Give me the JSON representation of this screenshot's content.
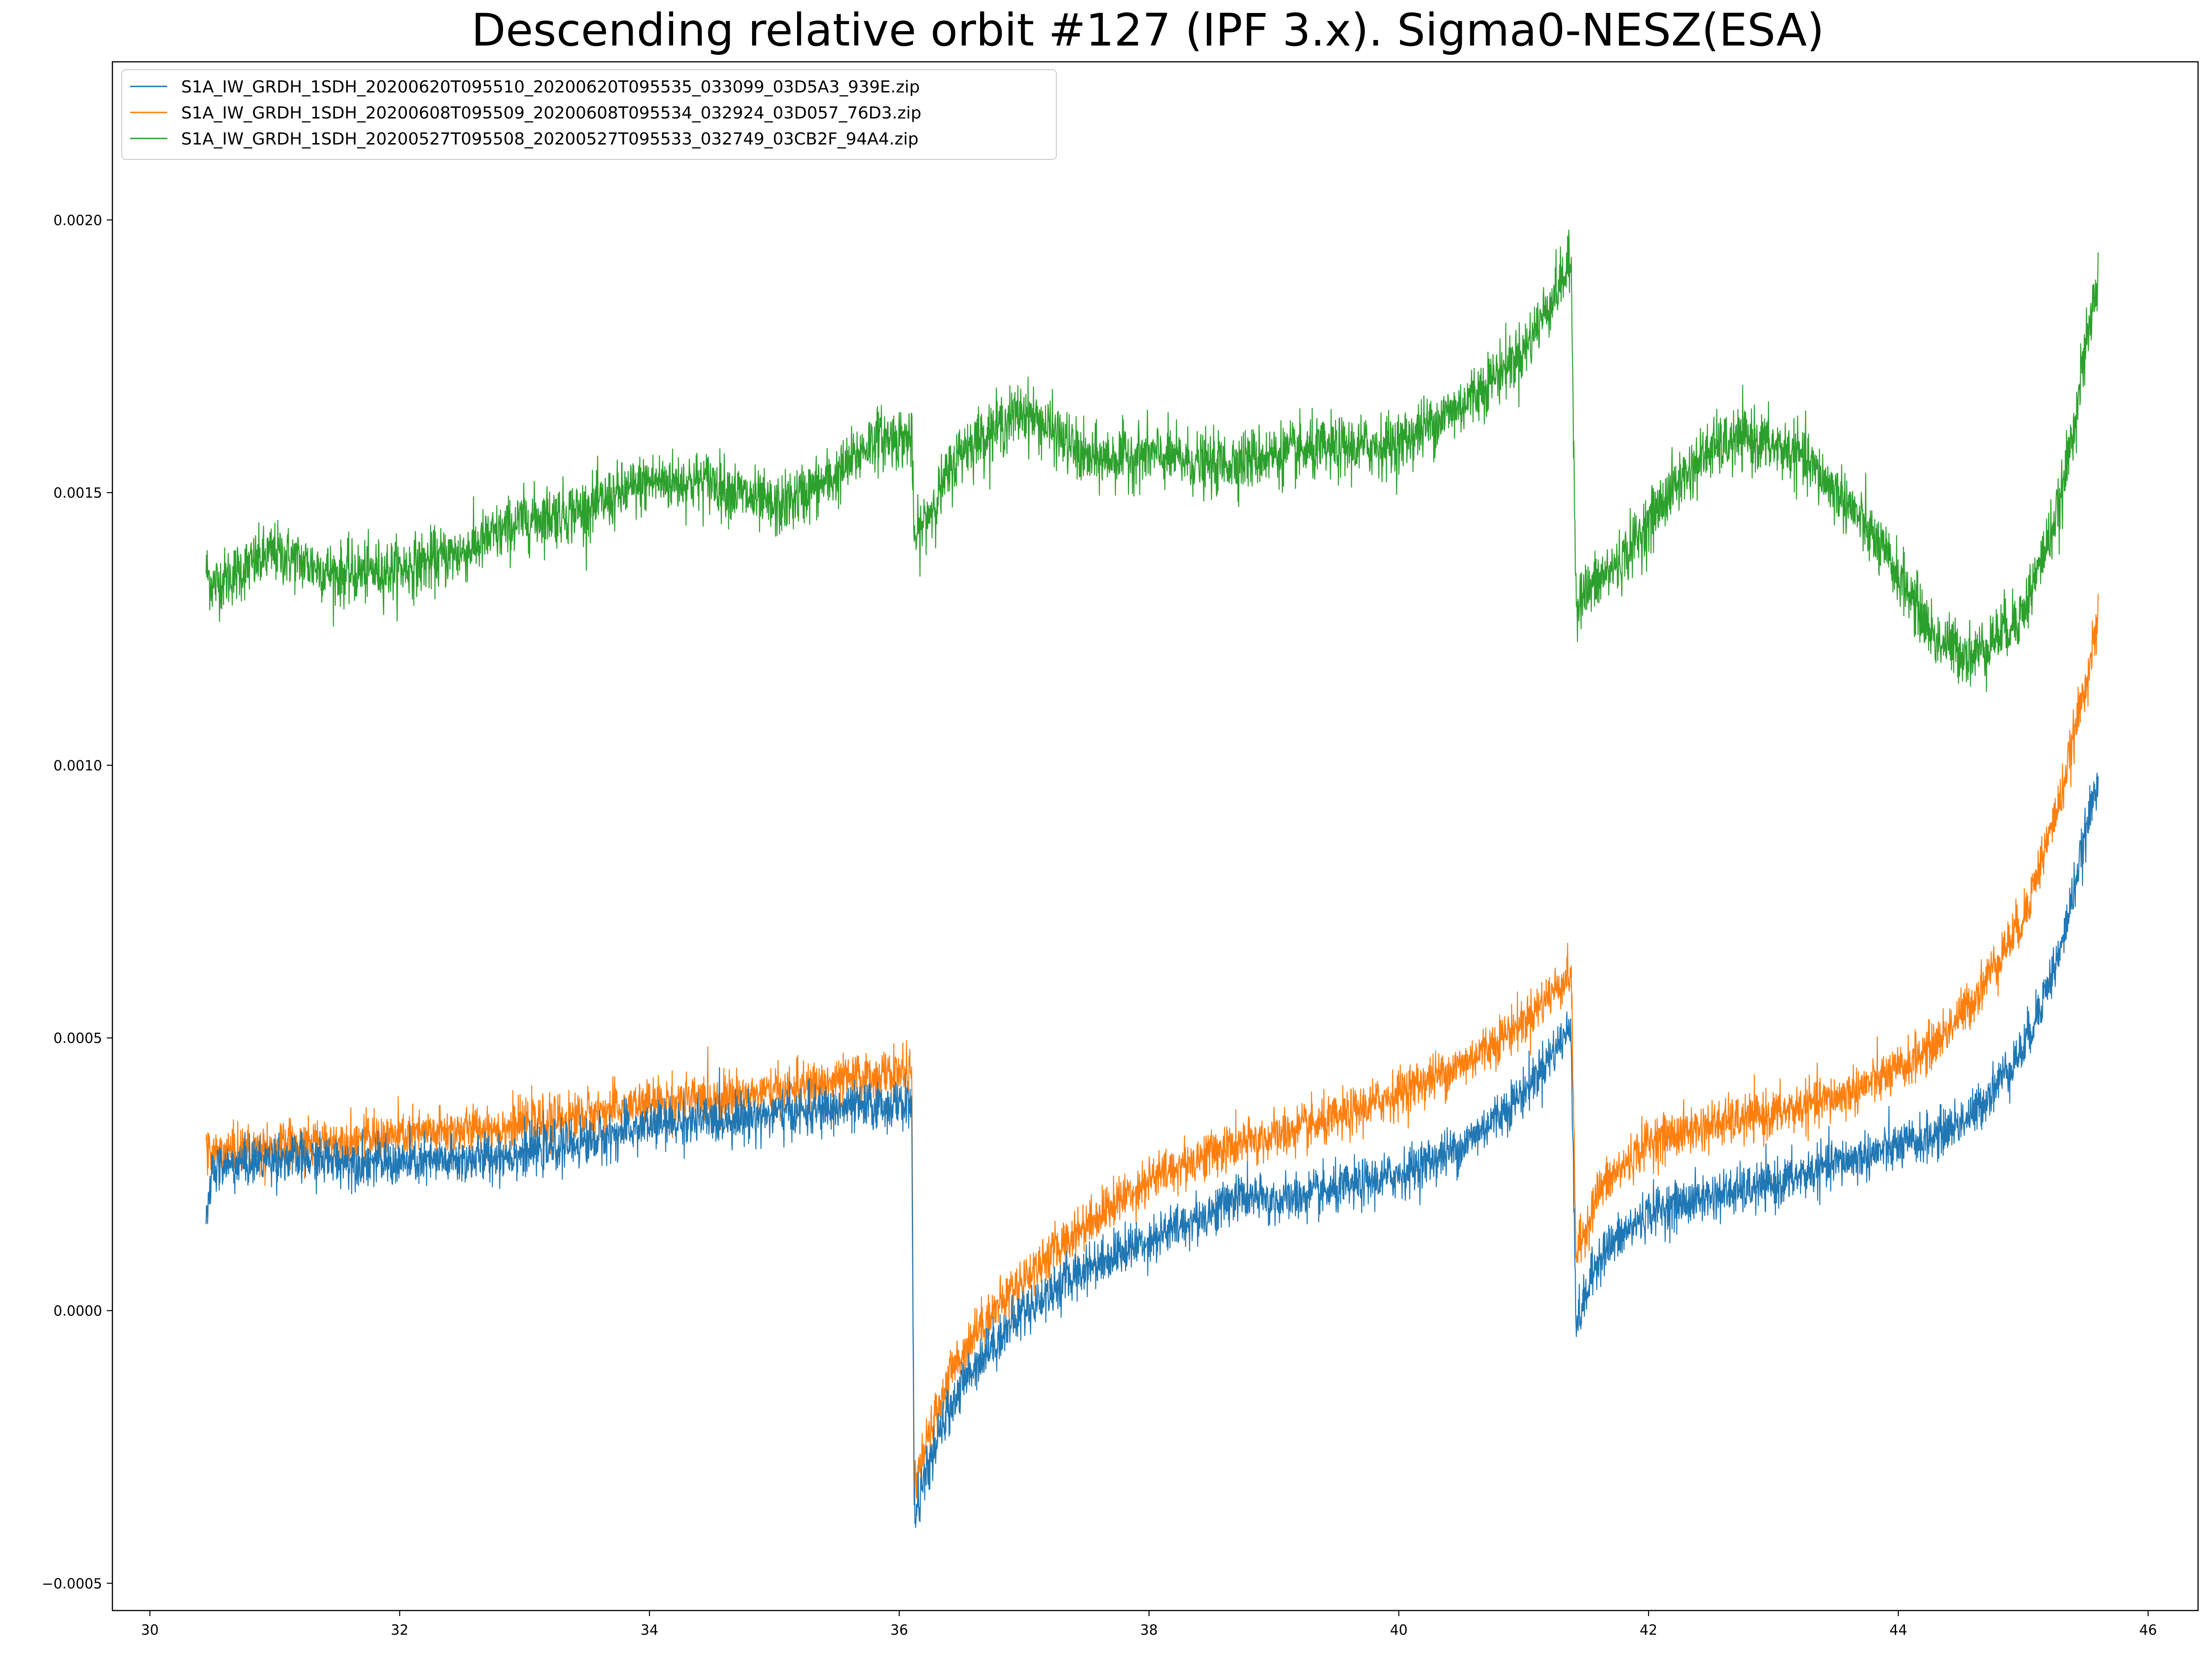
{
  "chart_data": {
    "type": "line",
    "title": "Descending relative orbit #127 (IPF 3.x). Sigma0-NESZ(ESA)",
    "xlabel": "",
    "ylabel": "",
    "xlim": [
      29.7,
      46.4
    ],
    "ylim": [
      -0.00055,
      0.00229
    ],
    "x_ticks": [
      30,
      32,
      34,
      36,
      38,
      40,
      42,
      44,
      46
    ],
    "x_tick_labels": [
      "30",
      "32",
      "34",
      "36",
      "38",
      "40",
      "42",
      "44",
      "46"
    ],
    "y_ticks": [
      -0.0005,
      0.0,
      0.0005,
      0.001,
      0.0015,
      0.002
    ],
    "y_tick_labels": [
      "−0.0005",
      "0.0000",
      "0.0005",
      "0.0010",
      "0.0015",
      "0.0020"
    ],
    "grid": false,
    "legend_position": "top-left",
    "series": [
      {
        "name": "S1A_IW_GRDH_1SDH_20200620T095510_20200620T095535_033099_03D5A3_939E.zip",
        "color": "#1f77b4",
        "noise": 2.2e-05,
        "points": [
          [
            30.45,
            0.00016
          ],
          [
            30.5,
            0.00026
          ],
          [
            31.0,
            0.00028
          ],
          [
            31.5,
            0.000275
          ],
          [
            32.0,
            0.00027
          ],
          [
            32.5,
            0.000275
          ],
          [
            33.0,
            0.00029
          ],
          [
            33.5,
            0.00031
          ],
          [
            34.0,
            0.00034
          ],
          [
            34.5,
            0.00035
          ],
          [
            35.0,
            0.00036
          ],
          [
            35.5,
            0.00037
          ],
          [
            36.1,
            0.00038
          ],
          [
            36.12,
            -0.00038
          ],
          [
            36.2,
            -0.00031
          ],
          [
            36.4,
            -0.00018
          ],
          [
            36.6,
            -0.0001
          ],
          [
            37.0,
            0.0
          ],
          [
            37.5,
            8e-05
          ],
          [
            38.0,
            0.00013
          ],
          [
            38.5,
            0.00018
          ],
          [
            38.7,
            0.00021
          ],
          [
            39.0,
            0.0002
          ],
          [
            39.5,
            0.00022
          ],
          [
            40.0,
            0.00025
          ],
          [
            40.5,
            0.0003
          ],
          [
            41.0,
            0.0004
          ],
          [
            41.38,
            0.00052
          ],
          [
            41.42,
            -3e-05
          ],
          [
            41.6,
            0.0001
          ],
          [
            42.0,
            0.00018
          ],
          [
            42.5,
            0.00021
          ],
          [
            43.0,
            0.00023
          ],
          [
            43.5,
            0.00027
          ],
          [
            44.0,
            0.0003
          ],
          [
            44.3,
            0.00032
          ],
          [
            44.6,
            0.00036
          ],
          [
            45.0,
            0.00048
          ],
          [
            45.3,
            0.00066
          ],
          [
            45.6,
            0.00098
          ]
        ]
      },
      {
        "name": "S1A_IW_GRDH_1SDH_20200608T095509_20200608T095534_032924_03D057_76D3.zip",
        "color": "#ff7f0e",
        "noise": 2.2e-05,
        "points": [
          [
            30.45,
            0.00029
          ],
          [
            30.5,
            0.00029
          ],
          [
            31.0,
            0.0003
          ],
          [
            31.5,
            0.00031
          ],
          [
            32.0,
            0.00032
          ],
          [
            32.5,
            0.00033
          ],
          [
            33.0,
            0.00034
          ],
          [
            33.5,
            0.00036
          ],
          [
            34.0,
            0.00038
          ],
          [
            34.5,
            0.00039
          ],
          [
            35.0,
            0.0004
          ],
          [
            35.5,
            0.00042
          ],
          [
            36.1,
            0.00044
          ],
          [
            36.12,
            -0.00033
          ],
          [
            36.2,
            -0.00026
          ],
          [
            36.4,
            -0.00012
          ],
          [
            36.6,
            -4e-05
          ],
          [
            37.0,
            6e-05
          ],
          [
            37.5,
            0.00016
          ],
          [
            38.0,
            0.00024
          ],
          [
            38.5,
            0.00029
          ],
          [
            39.0,
            0.00032
          ],
          [
            39.5,
            0.00035
          ],
          [
            40.0,
            0.0004
          ],
          [
            40.5,
            0.00045
          ],
          [
            41.0,
            0.00053
          ],
          [
            41.38,
            0.00062
          ],
          [
            41.42,
            0.0001
          ],
          [
            41.6,
            0.00022
          ],
          [
            42.0,
            0.00031
          ],
          [
            42.5,
            0.00034
          ],
          [
            43.0,
            0.00036
          ],
          [
            43.5,
            0.00039
          ],
          [
            44.0,
            0.00044
          ],
          [
            44.3,
            0.00049
          ],
          [
            44.6,
            0.00057
          ],
          [
            45.0,
            0.00072
          ],
          [
            45.3,
            0.00094
          ],
          [
            45.6,
            0.00126
          ]
        ]
      },
      {
        "name": "S1A_IW_GRDH_1SDH_20200527T095508_20200527T095533_032749_03CB2F_94A4.zip",
        "color": "#2ca02c",
        "noise": 2.8e-05,
        "points": [
          [
            30.45,
            0.00136
          ],
          [
            30.5,
            0.00133
          ],
          [
            31.0,
            0.00139
          ],
          [
            31.5,
            0.00135
          ],
          [
            32.0,
            0.00136
          ],
          [
            32.5,
            0.00139
          ],
          [
            33.0,
            0.00145
          ],
          [
            33.5,
            0.00147
          ],
          [
            34.0,
            0.00152
          ],
          [
            34.5,
            0.00152
          ],
          [
            35.0,
            0.00147
          ],
          [
            35.5,
            0.00153
          ],
          [
            35.8,
            0.0016
          ],
          [
            36.1,
            0.0016
          ],
          [
            36.12,
            0.00141
          ],
          [
            36.5,
            0.00158
          ],
          [
            37.0,
            0.00165
          ],
          [
            37.3,
            0.0016
          ],
          [
            37.5,
            0.00156
          ],
          [
            38.0,
            0.00157
          ],
          [
            38.5,
            0.00155
          ],
          [
            39.0,
            0.00157
          ],
          [
            39.5,
            0.00158
          ],
          [
            40.0,
            0.00159
          ],
          [
            40.5,
            0.00166
          ],
          [
            41.0,
            0.00176
          ],
          [
            41.38,
            0.00192
          ],
          [
            41.42,
            0.0013
          ],
          [
            41.8,
            0.00138
          ],
          [
            42.2,
            0.00151
          ],
          [
            42.5,
            0.00158
          ],
          [
            42.8,
            0.0016
          ],
          [
            43.2,
            0.00157
          ],
          [
            43.6,
            0.00148
          ],
          [
            44.0,
            0.00135
          ],
          [
            44.3,
            0.00123
          ],
          [
            44.6,
            0.0012
          ],
          [
            45.0,
            0.00128
          ],
          [
            45.3,
            0.00148
          ],
          [
            45.6,
            0.0019
          ]
        ]
      }
    ]
  }
}
